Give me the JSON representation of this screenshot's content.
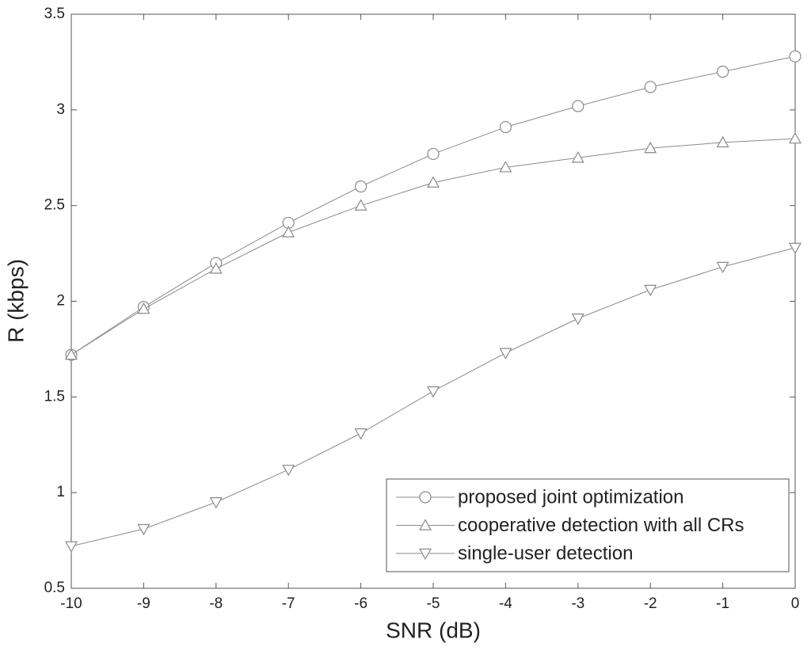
{
  "chart_data": {
    "type": "line",
    "xlabel": "SNR (dB)",
    "ylabel": "R (kbps)",
    "x": [
      -10,
      -9,
      -8,
      -7,
      -6,
      -5,
      -4,
      -3,
      -2,
      -1,
      0
    ],
    "series": [
      {
        "name": "proposed joint optimization",
        "color": "#8a8a8a",
        "marker": "circle",
        "values": [
          1.72,
          1.97,
          2.2,
          2.41,
          2.6,
          2.77,
          2.91,
          3.02,
          3.12,
          3.2,
          3.28
        ]
      },
      {
        "name": "cooperative detection with all CRs",
        "color": "#8a8a8a",
        "marker": "triangle-up",
        "values": [
          1.72,
          1.96,
          2.17,
          2.36,
          2.5,
          2.62,
          2.7,
          2.75,
          2.8,
          2.83,
          2.85
        ]
      },
      {
        "name": "single-user detection",
        "color": "#8a8a8a",
        "marker": "triangle-down",
        "values": [
          0.72,
          0.81,
          0.95,
          1.12,
          1.31,
          1.53,
          1.73,
          1.91,
          2.06,
          2.18,
          2.28
        ]
      }
    ],
    "xlim": [
      -10,
      0
    ],
    "xticks": [
      -10,
      -9,
      -8,
      -7,
      -6,
      -5,
      -4,
      -3,
      -2,
      -1,
      0
    ],
    "ylim": [
      0.5,
      3.5
    ],
    "yticks": [
      0.5,
      1,
      1.5,
      2,
      2.5,
      3,
      3.5
    ],
    "grid": false,
    "legend": "lower right"
  }
}
